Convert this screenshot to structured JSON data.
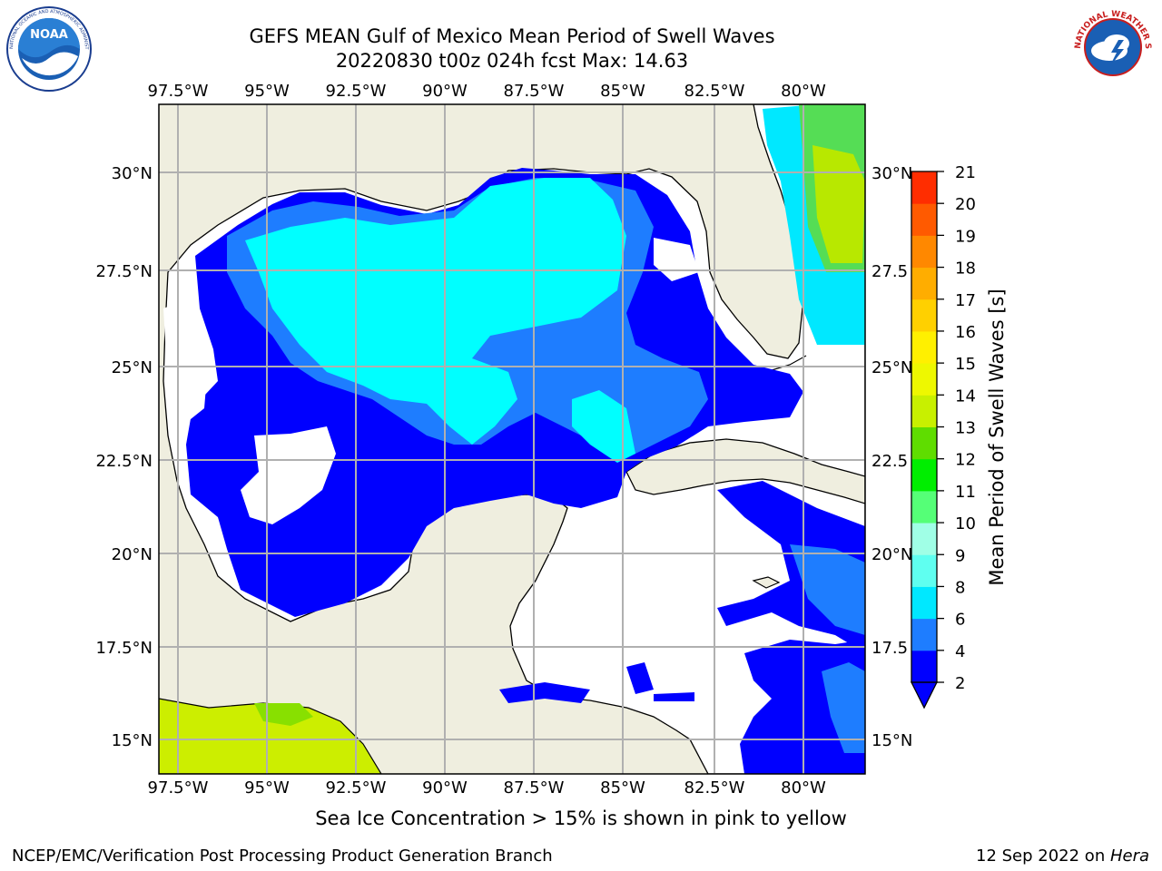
{
  "header": {
    "title_line1": "GEFS MEAN Gulf of Mexico Mean Period of Swell Waves",
    "title_line2": "20220830 t00z 024h fcst   Max: 14.63"
  },
  "logos": {
    "left": "noaa-logo",
    "right": "nws-logo",
    "left_ring_text": "NATIONAL OCEANIC AND ATMOSPHERIC ADMINISTRATION · U.S. DEPARTMENT OF COMMERCE",
    "left_center_text": "NOAA",
    "right_ring_text": "NATIONAL WEATHER SERVICE"
  },
  "map": {
    "lon_ticks": [
      "97.5°W",
      "95°W",
      "92.5°W",
      "90°W",
      "87.5°W",
      "85°W",
      "82.5°W",
      "80°W"
    ],
    "lat_ticks_left": [
      "30°N",
      "27.5°N",
      "25°N",
      "22.5°N",
      "20°N",
      "17.5°N",
      "15°N"
    ],
    "lat_ticks_right": [
      "30°N",
      "27.5",
      "25°N",
      "22.5",
      "20°N",
      "17.5",
      "15°N"
    ],
    "land_color": "#efeedf",
    "grid_color": "#b0b0b0"
  },
  "colorbar": {
    "title": "Mean Period of Swell Waves [s]",
    "ticks": [
      "2",
      "4",
      "6",
      "8",
      "9",
      "10",
      "11",
      "12",
      "13",
      "14",
      "15",
      "16",
      "17",
      "18",
      "19",
      "20",
      "21"
    ],
    "colors": [
      "#0000ff",
      "#1e7dff",
      "#00e8ff",
      "#5ffff0",
      "#a0ffe6",
      "#55ff77",
      "#00ee00",
      "#5fdd00",
      "#c8f000",
      "#eef800",
      "#fff000",
      "#ffd000",
      "#ffad00",
      "#ff8800",
      "#ff5a00",
      "#ff2d00"
    ],
    "extend_color": "#0000ff"
  },
  "footer": {
    "ice_note": "Sea Ice Concentration > 15% is shown in pink to yellow",
    "credit": "NCEP/EMC/Verification Post Processing Product Generation Branch",
    "date_prefix": "12 Sep 2022 on ",
    "date_host": "Hera"
  }
}
